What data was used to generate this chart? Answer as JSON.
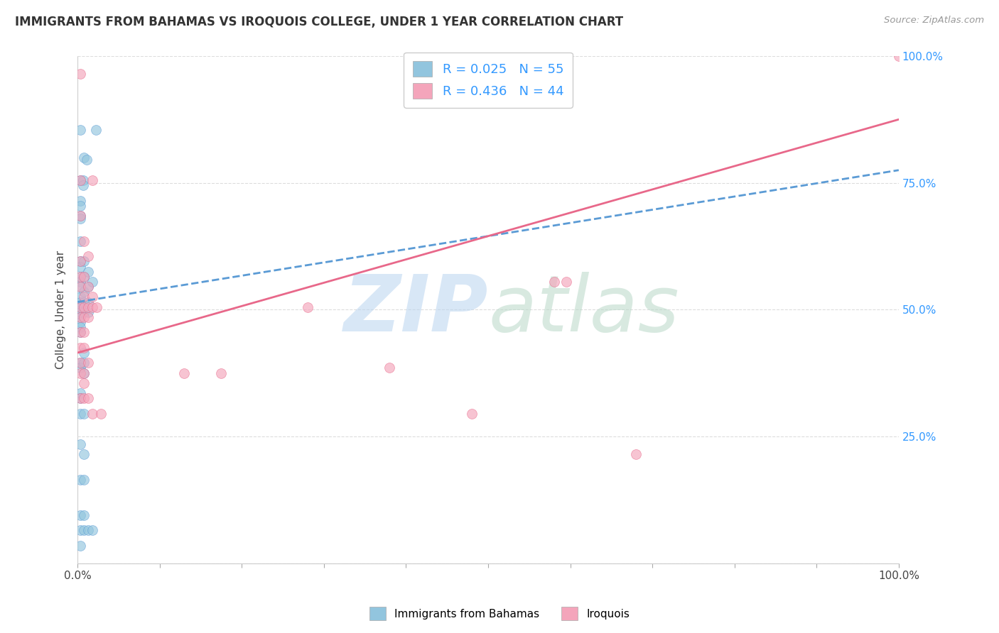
{
  "title": "IMMIGRANTS FROM BAHAMAS VS IROQUOIS COLLEGE, UNDER 1 YEAR CORRELATION CHART",
  "source": "Source: ZipAtlas.com",
  "ylabel": "College, Under 1 year",
  "xlim": [
    0,
    1
  ],
  "ylim": [
    0,
    1
  ],
  "blue_color": "#92c5de",
  "pink_color": "#f4a5bb",
  "blue_line_color": "#5b9bd5",
  "pink_line_color": "#e8688a",
  "blue_line": [
    [
      0.0,
      0.515
    ],
    [
      1.0,
      0.775
    ]
  ],
  "pink_line": [
    [
      0.0,
      0.415
    ],
    [
      1.0,
      0.875
    ]
  ],
  "watermark_zip": "ZIP",
  "watermark_atlas": "atlas",
  "blue_scatter": [
    [
      0.003,
      0.855
    ],
    [
      0.022,
      0.855
    ],
    [
      0.008,
      0.8
    ],
    [
      0.011,
      0.795
    ],
    [
      0.003,
      0.755
    ],
    [
      0.003,
      0.715
    ],
    [
      0.003,
      0.705
    ],
    [
      0.007,
      0.755
    ],
    [
      0.007,
      0.745
    ],
    [
      0.003,
      0.685
    ],
    [
      0.003,
      0.68
    ],
    [
      0.003,
      0.635
    ],
    [
      0.003,
      0.595
    ],
    [
      0.003,
      0.585
    ],
    [
      0.003,
      0.565
    ],
    [
      0.003,
      0.555
    ],
    [
      0.003,
      0.545
    ],
    [
      0.003,
      0.525
    ],
    [
      0.003,
      0.515
    ],
    [
      0.003,
      0.505
    ],
    [
      0.003,
      0.495
    ],
    [
      0.003,
      0.485
    ],
    [
      0.003,
      0.475
    ],
    [
      0.003,
      0.465
    ],
    [
      0.003,
      0.455
    ],
    [
      0.008,
      0.595
    ],
    [
      0.008,
      0.565
    ],
    [
      0.008,
      0.535
    ],
    [
      0.008,
      0.515
    ],
    [
      0.008,
      0.495
    ],
    [
      0.013,
      0.575
    ],
    [
      0.013,
      0.545
    ],
    [
      0.013,
      0.515
    ],
    [
      0.013,
      0.495
    ],
    [
      0.018,
      0.555
    ],
    [
      0.003,
      0.395
    ],
    [
      0.003,
      0.385
    ],
    [
      0.008,
      0.415
    ],
    [
      0.008,
      0.395
    ],
    [
      0.008,
      0.375
    ],
    [
      0.003,
      0.335
    ],
    [
      0.003,
      0.325
    ],
    [
      0.003,
      0.295
    ],
    [
      0.008,
      0.295
    ],
    [
      0.003,
      0.235
    ],
    [
      0.008,
      0.215
    ],
    [
      0.003,
      0.165
    ],
    [
      0.008,
      0.165
    ],
    [
      0.003,
      0.095
    ],
    [
      0.008,
      0.095
    ],
    [
      0.003,
      0.065
    ],
    [
      0.008,
      0.065
    ],
    [
      0.013,
      0.065
    ],
    [
      0.018,
      0.065
    ],
    [
      0.003,
      0.035
    ]
  ],
  "pink_scatter": [
    [
      0.003,
      0.965
    ],
    [
      0.003,
      0.755
    ],
    [
      0.018,
      0.755
    ],
    [
      0.003,
      0.685
    ],
    [
      0.008,
      0.635
    ],
    [
      0.003,
      0.595
    ],
    [
      0.013,
      0.605
    ],
    [
      0.003,
      0.565
    ],
    [
      0.008,
      0.565
    ],
    [
      0.003,
      0.545
    ],
    [
      0.013,
      0.545
    ],
    [
      0.008,
      0.525
    ],
    [
      0.018,
      0.525
    ],
    [
      0.003,
      0.505
    ],
    [
      0.008,
      0.505
    ],
    [
      0.013,
      0.505
    ],
    [
      0.018,
      0.505
    ],
    [
      0.023,
      0.505
    ],
    [
      0.003,
      0.485
    ],
    [
      0.008,
      0.485
    ],
    [
      0.013,
      0.485
    ],
    [
      0.003,
      0.455
    ],
    [
      0.008,
      0.455
    ],
    [
      0.003,
      0.425
    ],
    [
      0.008,
      0.425
    ],
    [
      0.003,
      0.395
    ],
    [
      0.013,
      0.395
    ],
    [
      0.003,
      0.375
    ],
    [
      0.008,
      0.375
    ],
    [
      0.008,
      0.355
    ],
    [
      0.003,
      0.325
    ],
    [
      0.008,
      0.325
    ],
    [
      0.013,
      0.325
    ],
    [
      0.018,
      0.295
    ],
    [
      0.028,
      0.295
    ],
    [
      0.13,
      0.375
    ],
    [
      0.175,
      0.375
    ],
    [
      0.28,
      0.505
    ],
    [
      0.38,
      0.385
    ],
    [
      0.48,
      0.295
    ],
    [
      0.58,
      0.555
    ],
    [
      0.595,
      0.555
    ],
    [
      0.68,
      0.215
    ],
    [
      1.0,
      1.0
    ]
  ]
}
